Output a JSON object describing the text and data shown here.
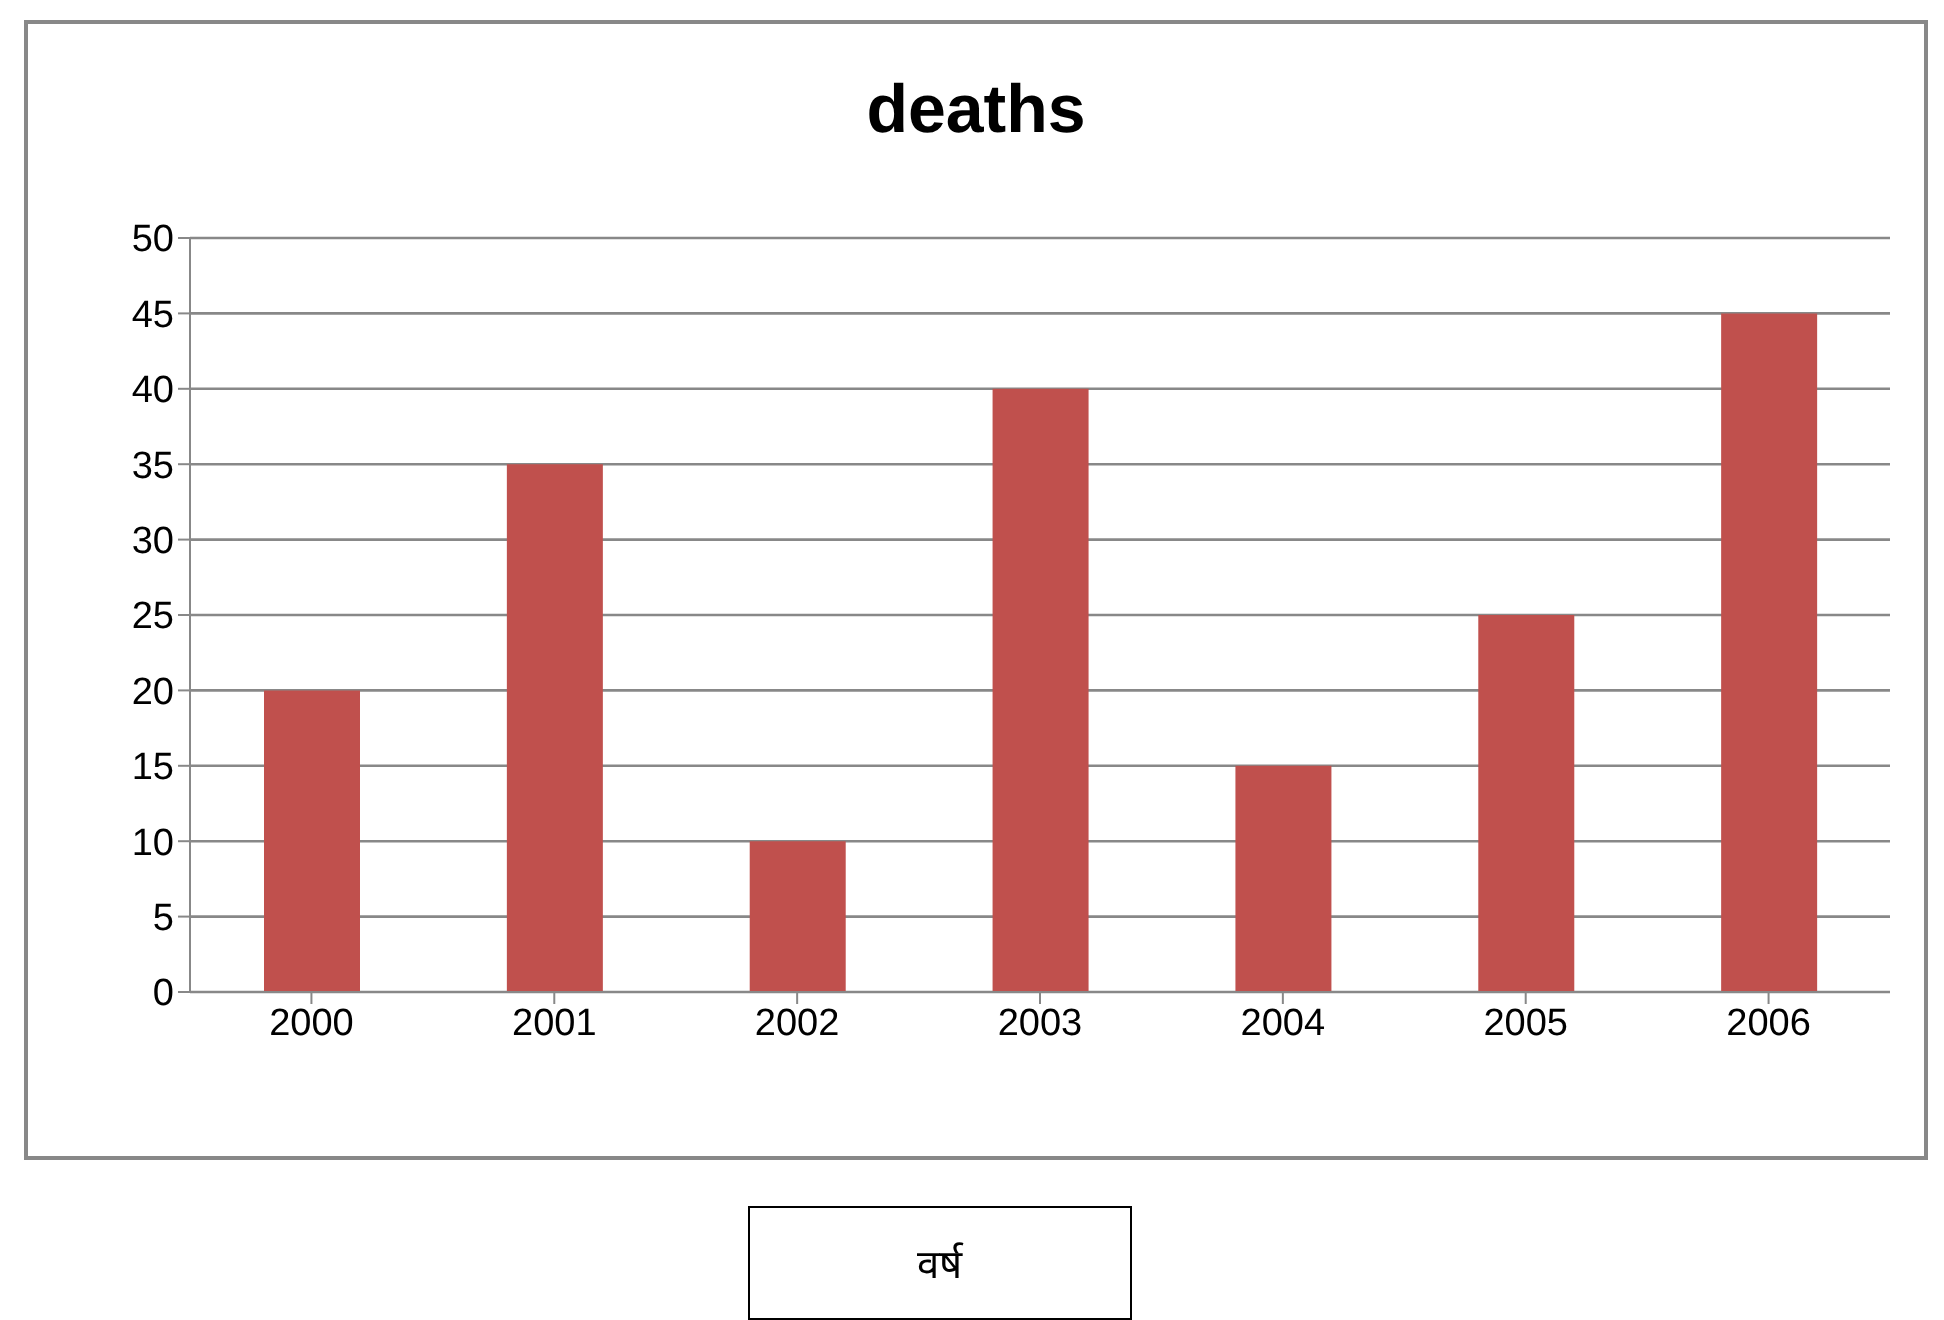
{
  "chart_data": {
    "type": "bar",
    "title": "deaths",
    "xlabel": "वर्ष",
    "categories": [
      "2000",
      "2001",
      "2002",
      "2003",
      "2004",
      "2005",
      "2006"
    ],
    "values": [
      20,
      35,
      10,
      40,
      15,
      25,
      45
    ],
    "color": "#c0504d",
    "ylim": [
      0,
      50
    ],
    "yticks": [
      0,
      5,
      10,
      15,
      20,
      25,
      30,
      35,
      40,
      45,
      50
    ],
    "grid": "y"
  }
}
